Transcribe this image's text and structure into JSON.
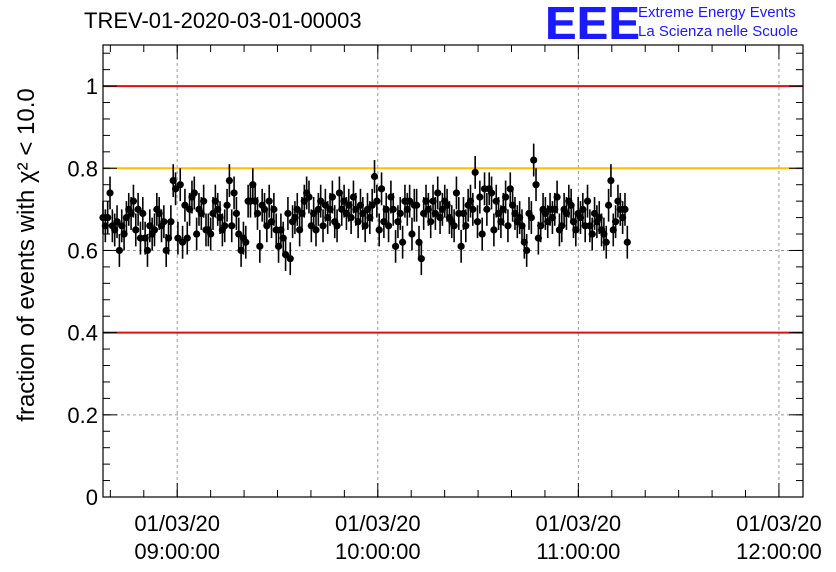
{
  "header": {
    "title": "TREV-01-2020-03-01-00003",
    "logo_letters": "EEE",
    "logo_line1": "Extreme Energy Events",
    "logo_line2": "La Scienza nelle Scuole"
  },
  "chart_data": {
    "type": "scatter",
    "ylabel": "fraction of events with χ² < 10.0",
    "ylim": [
      0,
      1.1
    ],
    "yticks": [
      0,
      0.2,
      0.4,
      0.6,
      0.8,
      1
    ],
    "ytick_labels": [
      "0",
      "0.2",
      "0.4",
      "0.6",
      "0.8",
      "1"
    ],
    "xticks": [
      {
        "line1": "01/03/20",
        "line2": "09:00:00",
        "hours": 9.0
      },
      {
        "line1": "01/03/20",
        "line2": "10:00:00",
        "hours": 10.0
      },
      {
        "line1": "01/03/20",
        "line2": "11:00:00",
        "hours": 11.0
      },
      {
        "line1": "01/03/20",
        "line2": "12:00:00",
        "hours": 12.0
      }
    ],
    "xlim_hours": [
      8.63,
      12.12
    ],
    "grid": true,
    "reference_lines": [
      {
        "y": 1.0,
        "color": "#dd1111"
      },
      {
        "y": 0.8,
        "color": "#ffbf00"
      },
      {
        "y": 0.4,
        "color": "#dd1111"
      }
    ],
    "error_bar": 0.04,
    "series": [
      {
        "x_start_hours": 8.63,
        "x_step_hours": 0.01167,
        "values": [
          0.68,
          0.66,
          0.68,
          0.74,
          0.66,
          0.65,
          0.67,
          0.6,
          0.66,
          0.64,
          0.68,
          0.7,
          0.69,
          0.72,
          0.65,
          0.7,
          0.63,
          0.69,
          0.63,
          0.6,
          0.66,
          0.64,
          0.65,
          0.7,
          0.69,
          0.66,
          0.67,
          0.6,
          0.63,
          0.67,
          0.77,
          0.75,
          0.63,
          0.76,
          0.62,
          0.71,
          0.63,
          0.7,
          0.73,
          0.74,
          0.64,
          0.7,
          0.69,
          0.72,
          0.65,
          0.65,
          0.64,
          0.69,
          0.72,
          0.7,
          0.68,
          0.65,
          0.66,
          0.71,
          0.77,
          0.66,
          0.74,
          0.69,
          0.64,
          0.6,
          0.63,
          0.62,
          0.72,
          0.72,
          0.76,
          0.72,
          0.69,
          0.61,
          0.71,
          0.7,
          0.66,
          0.72,
          0.67,
          0.7,
          0.65,
          0.61,
          0.65,
          0.63,
          0.59,
          0.69,
          0.58,
          0.67,
          0.68,
          0.7,
          0.65,
          0.69,
          0.72,
          0.74,
          0.73,
          0.66,
          0.69,
          0.65,
          0.7,
          0.72,
          0.66,
          0.71,
          0.68,
          0.7,
          0.73,
          0.67,
          0.66,
          0.74,
          0.7,
          0.72,
          0.69,
          0.71,
          0.68,
          0.73,
          0.7,
          0.67,
          0.71,
          0.69,
          0.66,
          0.7,
          0.68,
          0.71,
          0.78,
          0.72,
          0.65,
          0.75,
          0.67,
          0.7,
          0.66,
          0.73,
          0.7,
          0.61,
          0.67,
          0.69,
          0.62,
          0.72,
          0.7,
          0.72,
          0.64,
          0.71,
          0.71,
          0.62,
          0.58,
          0.69,
          0.72,
          0.7,
          0.67,
          0.72,
          0.69,
          0.74,
          0.68,
          0.7,
          0.72,
          0.71,
          0.68,
          0.67,
          0.66,
          0.74,
          0.69,
          0.61,
          0.69,
          0.66,
          0.71,
          0.72,
          0.7,
          0.79,
          0.67,
          0.73,
          0.64,
          0.75,
          0.7,
          0.75,
          0.74,
          0.65,
          0.72,
          0.69,
          0.67,
          0.7,
          0.73,
          0.66,
          0.75,
          0.71,
          0.69,
          0.67,
          0.68,
          0.66,
          0.62,
          0.6,
          0.69,
          0.68,
          0.82,
          0.76,
          0.63,
          0.66,
          0.7,
          0.69,
          0.67,
          0.7,
          0.68,
          0.7,
          0.73,
          0.65,
          0.66,
          0.7,
          0.69,
          0.72,
          0.71,
          0.67,
          0.65,
          0.69,
          0.68,
          0.7,
          0.66,
          0.72,
          0.66,
          0.64,
          0.69,
          0.67,
          0.68,
          0.65,
          0.64,
          0.62,
          0.71,
          0.77,
          0.65,
          0.67,
          0.72,
          0.7,
          0.68,
          0.7,
          0.62
        ]
      }
    ]
  }
}
